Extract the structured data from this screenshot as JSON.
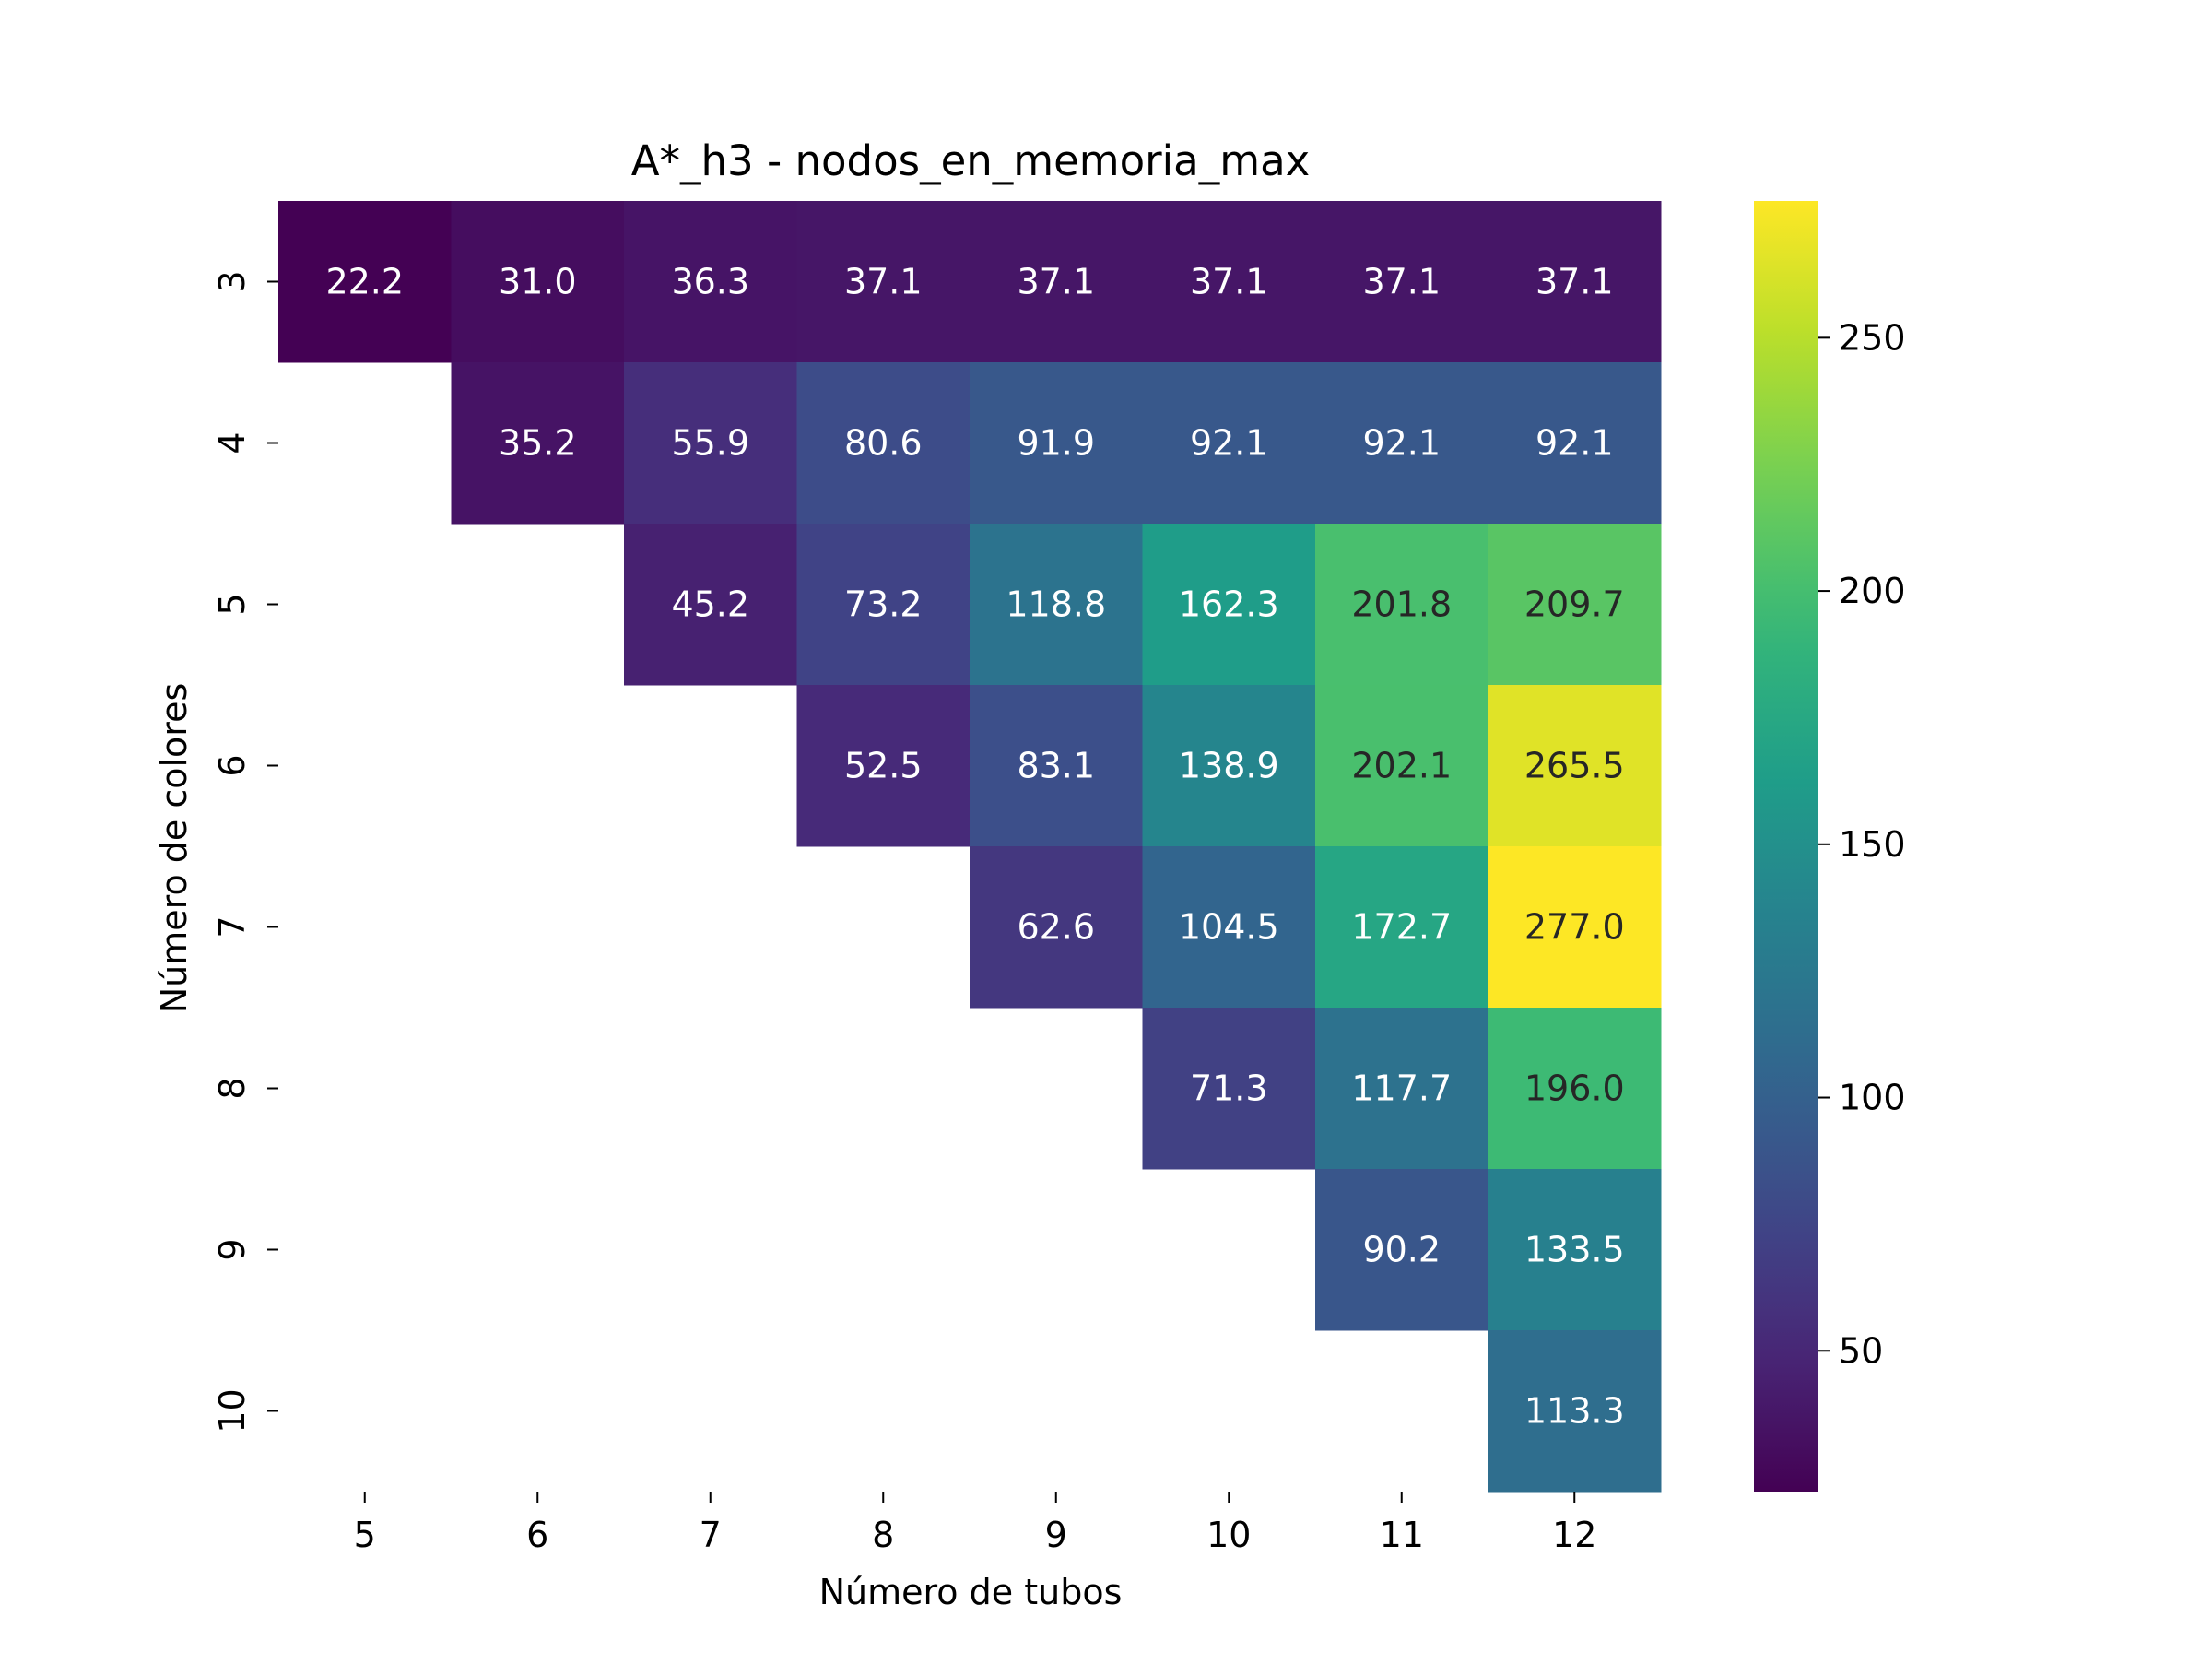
{
  "chart_data": {
    "type": "heatmap",
    "title": "A*_h3 - nodos_en_memoria_max",
    "xlabel": "Número de tubos",
    "ylabel": "Número de colores",
    "x_categories": [
      "5",
      "6",
      "7",
      "8",
      "9",
      "10",
      "11",
      "12"
    ],
    "y_categories": [
      "3",
      "4",
      "5",
      "6",
      "7",
      "8",
      "9",
      "10"
    ],
    "values": [
      [
        22.2,
        31.0,
        36.3,
        37.1,
        37.1,
        37.1,
        37.1,
        37.1
      ],
      [
        null,
        35.2,
        55.9,
        80.6,
        91.9,
        92.1,
        92.1,
        92.1
      ],
      [
        null,
        null,
        45.2,
        73.2,
        118.8,
        162.3,
        201.8,
        209.7
      ],
      [
        null,
        null,
        null,
        52.5,
        83.1,
        138.9,
        202.1,
        265.5
      ],
      [
        null,
        null,
        null,
        null,
        62.6,
        104.5,
        172.7,
        277.0
      ],
      [
        null,
        null,
        null,
        null,
        null,
        71.3,
        117.7,
        196.0
      ],
      [
        null,
        null,
        null,
        null,
        null,
        null,
        90.2,
        133.5
      ],
      [
        null,
        null,
        null,
        null,
        null,
        null,
        null,
        113.3
      ]
    ],
    "value_format": "0.0",
    "colormap": "viridis",
    "colorbar": {
      "vmin": 22.2,
      "vmax": 277.0,
      "ticks": [
        50,
        100,
        150,
        200,
        250
      ]
    },
    "grid": false,
    "legend": "colorbar-right"
  }
}
